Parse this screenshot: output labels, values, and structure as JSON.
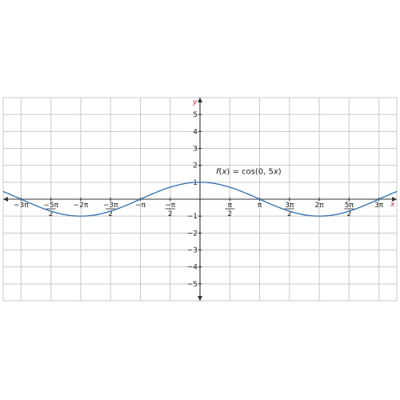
{
  "chart_data": {
    "type": "line",
    "title": "",
    "xlabel": "x",
    "ylabel": "y",
    "xlim": [
      -10.367,
      10.367
    ],
    "ylim": [
      -6,
      6
    ],
    "grid": true,
    "legend": "none",
    "function_label": {
      "prefix": "f",
      "x": "x",
      "eq": ") = cos(0, 5",
      "close": ")"
    },
    "x_ticks": [
      {
        "value": -9.4248,
        "num": "−3π",
        "den": ""
      },
      {
        "value": -7.854,
        "num": "−5π",
        "den": "2"
      },
      {
        "value": -6.2832,
        "num": "−2π",
        "den": ""
      },
      {
        "value": -4.7124,
        "num": "−3π",
        "den": "2"
      },
      {
        "value": -3.1416,
        "num": "−π",
        "den": ""
      },
      {
        "value": -1.5708,
        "num": "−π",
        "den": "2"
      },
      {
        "value": 1.5708,
        "num": "π",
        "den": "2"
      },
      {
        "value": 3.1416,
        "num": "π",
        "den": ""
      },
      {
        "value": 4.7124,
        "num": "3π",
        "den": "2"
      },
      {
        "value": 6.2832,
        "num": "2π",
        "den": ""
      },
      {
        "value": 7.854,
        "num": "5π",
        "den": "2"
      },
      {
        "value": 9.4248,
        "num": "3π",
        "den": ""
      }
    ],
    "y_ticks": [
      {
        "value": 5,
        "label": "5"
      },
      {
        "value": 4,
        "label": "4"
      },
      {
        "value": 3,
        "label": "3"
      },
      {
        "value": 2,
        "label": "2"
      },
      {
        "value": 1,
        "label": "1"
      },
      {
        "value": -1,
        "label": "−1"
      },
      {
        "value": -2,
        "label": "−2"
      },
      {
        "value": -3,
        "label": "−3"
      },
      {
        "value": -4,
        "label": "−4"
      },
      {
        "value": -5,
        "label": "−5"
      }
    ],
    "series": [
      {
        "function": "cos(0.5x)",
        "samples": 240,
        "color": "#2e6fb0"
      }
    ],
    "colors": {
      "curve": "#2e6fb0",
      "axis_label": "#cc2222",
      "grid": "#c8c8c8"
    }
  }
}
